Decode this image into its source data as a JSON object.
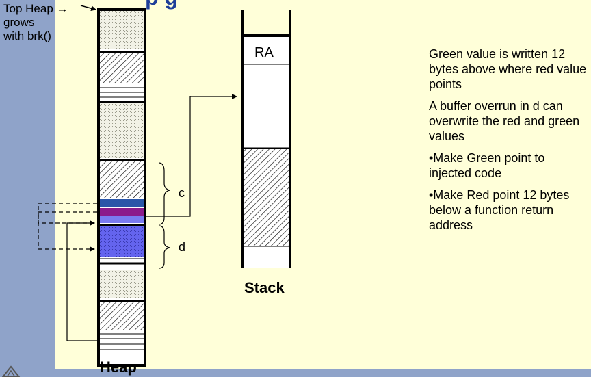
{
  "title_fragment": "p    g",
  "heap_note": [
    "Top Heap →",
    "grows",
    "with brk()"
  ],
  "heap_label": "Heap",
  "stack_label": "Stack",
  "ra_label": "RA",
  "chunk_c_label": "c",
  "chunk_d_label": "d",
  "notes": [
    "Green value is written 12 bytes above where red value points",
    "A buffer overrun in d can overwrite the red and green values",
    "•Make Green point to injected code",
    "•Make Red point 12 bytes below a function return address"
  ],
  "colors": {
    "background": "#ffffd9",
    "sidebar": "#8fa3c9",
    "green_value": "#2a56a8",
    "red_value": "#8b1a8b",
    "overrun_buffer": "#5a5ae6",
    "title": "#1f3f99"
  }
}
